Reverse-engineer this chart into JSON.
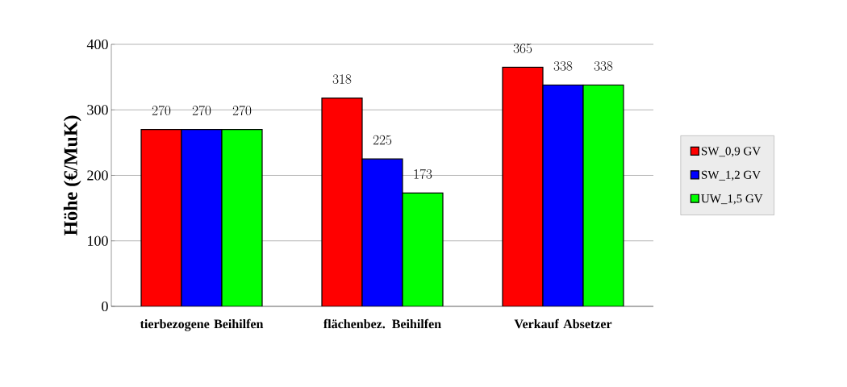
{
  "chart_data": {
    "type": "bar",
    "ylabel": "Höhe (€/MuK)",
    "categories": [
      "tierbezogene Beihilfen",
      "flächenbez. Beihilfen",
      "Verkauf Absetzer"
    ],
    "series": [
      {
        "name": "SW_0,9 GV",
        "color": "#ff0000",
        "values": [
          270,
          318,
          365
        ]
      },
      {
        "name": "SW_1,2 GV",
        "color": "#0000ff",
        "values": [
          270,
          225,
          338
        ]
      },
      {
        "name": "UW_1,5 GV",
        "color": "#00ff00",
        "values": [
          270,
          173,
          338
        ]
      }
    ],
    "ylim": [
      0,
      400
    ],
    "yticks": [
      0,
      100,
      200,
      300,
      400
    ],
    "grid": "y",
    "legend": "right",
    "data_labels": true
  }
}
